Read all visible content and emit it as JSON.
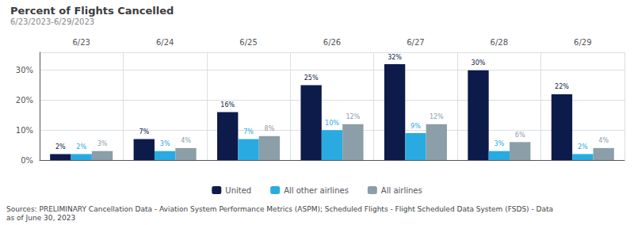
{
  "chart_data": {
    "type": "bar",
    "title": "Percent of Flights Cancelled",
    "subtitle": "6/23/2023-6/29/2023",
    "footnote": "Sources: PRELIMINARY Cancellation Data - Aviation System Performance Metrics (ASPM); Scheduled Flights - Flight Scheduled Data System (FSDS) - Data\nas of June 30, 2023",
    "categories": [
      "6/23",
      "6/24",
      "6/25",
      "6/26",
      "6/27",
      "6/28",
      "6/29"
    ],
    "series": [
      {
        "name": "United",
        "color": "#0D1B4B",
        "values": [
          2,
          7,
          16,
          25,
          32,
          30,
          22
        ],
        "value_labels": [
          "2%",
          "7%",
          "16%",
          "25%",
          "32%",
          "30%",
          "22%"
        ]
      },
      {
        "name": "All other airlines",
        "color": "#29ABE2",
        "values": [
          2,
          3,
          7,
          10,
          9,
          3,
          2
        ],
        "value_labels": [
          "2%",
          "3%",
          "7%",
          "10%",
          "9%",
          "3%",
          "2%"
        ]
      },
      {
        "name": "All airlines",
        "color": "#8C9EA8",
        "values": [
          3,
          4,
          8,
          12,
          12,
          6,
          4
        ],
        "value_labels": [
          "3%",
          "4%",
          "8%",
          "12%",
          "12%",
          "6%",
          "4%"
        ]
      }
    ],
    "ylim": [
      0,
      36
    ],
    "yticks": [
      {
        "value": 0,
        "label": "0%"
      },
      {
        "value": 10,
        "label": "10%"
      },
      {
        "value": 20,
        "label": "20%"
      },
      {
        "value": 30,
        "label": "30%"
      }
    ],
    "grid": true,
    "legend": "bottom",
    "data_labels": true
  }
}
